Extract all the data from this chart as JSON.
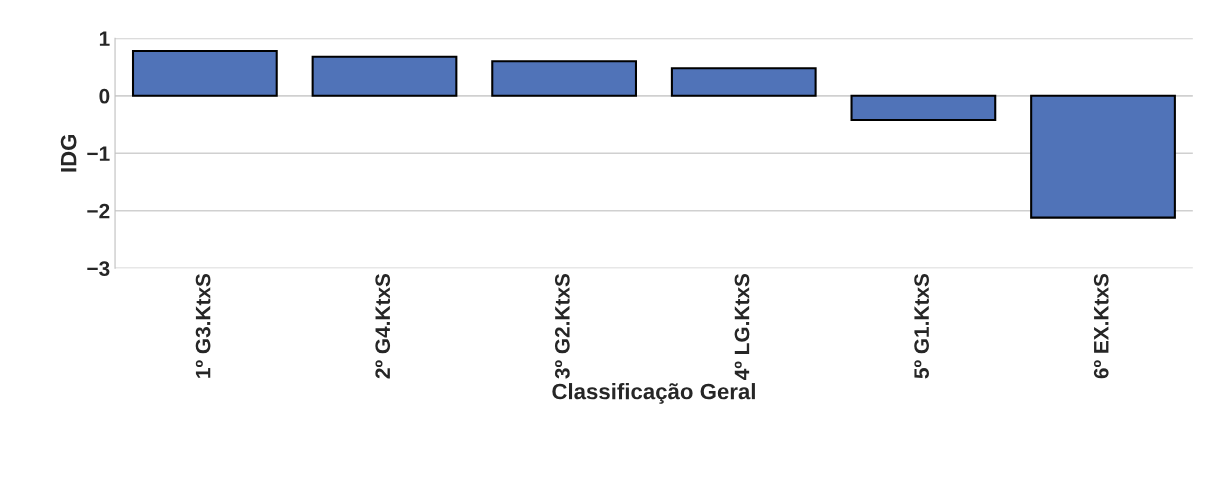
{
  "chart_data": {
    "type": "bar",
    "categories": [
      "1º G3.KtxS",
      "2º G4.KtxS",
      "3º G2.KtxS",
      "4º LG.KtxS",
      "5º G1.KtxS",
      "6º EX.KtxS"
    ],
    "values": [
      0.78,
      0.68,
      0.6,
      0.48,
      -0.42,
      -2.12
    ],
    "color": "#5073b8",
    "xlabel": "Classificação Geral",
    "ylabel": "IDG",
    "ylim": [
      -3,
      1
    ],
    "yticks": [
      {
        "value": -3,
        "label": "−3"
      },
      {
        "value": -2,
        "label": "−2"
      },
      {
        "value": -1,
        "label": "−1"
      },
      0,
      1
    ],
    "grid": "y",
    "legend": false
  }
}
